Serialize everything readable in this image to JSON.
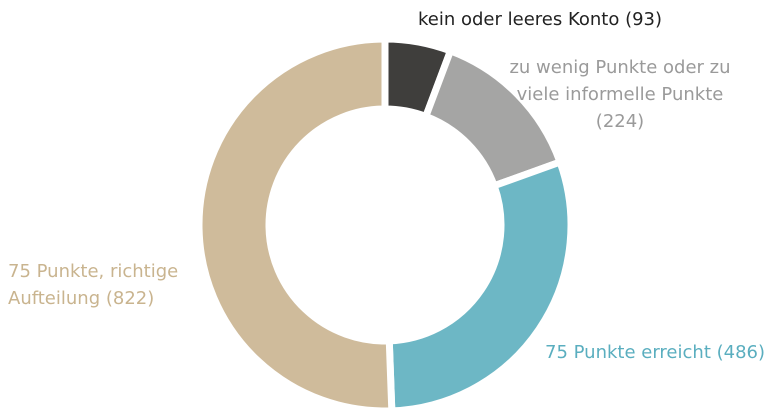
{
  "chart_data": {
    "type": "donut",
    "categories": [
      "kein oder leeres Konto (93)",
      "zu wenig Punkte oder zu viele informelle Punkte (224)",
      "75 Punkte erreicht (486)",
      "75 Punkte, richtige Aufteilung (822)"
    ],
    "values": [
      93,
      224,
      486,
      822
    ],
    "colors": [
      "#3f3e3c",
      "#a5a5a4",
      "#6db7c5",
      "#cfbb9b"
    ]
  }
}
